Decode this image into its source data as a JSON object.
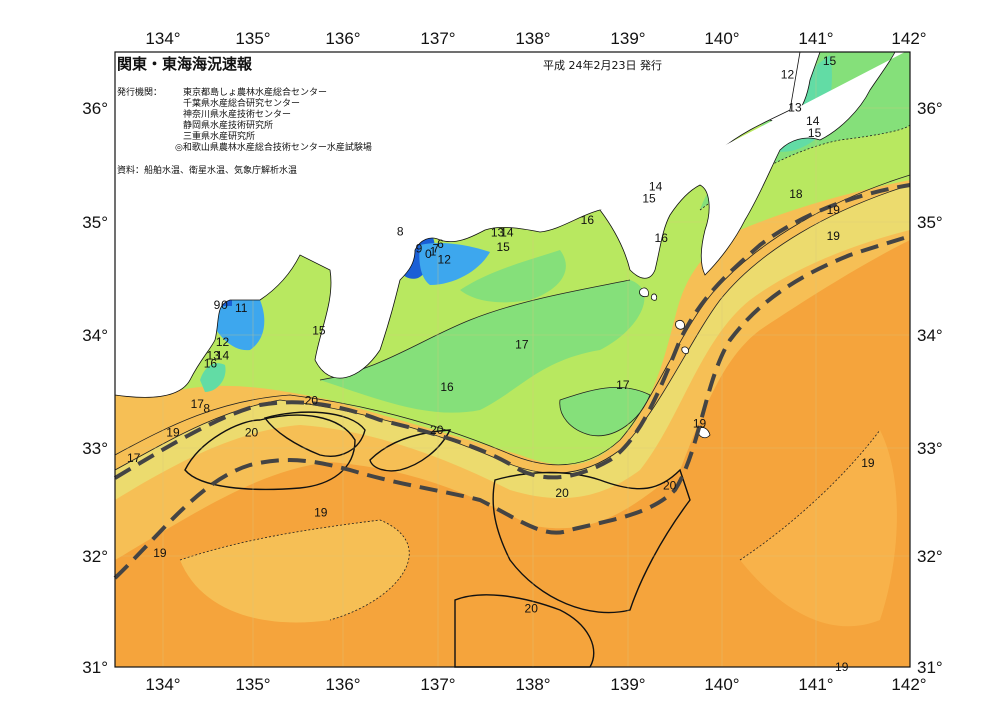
{
  "title": "関東・東海海況速報",
  "date": "平成 24年2月23日 発行",
  "issuer_label": "発行機関：",
  "issuers": [
    "東京都島しょ農林水産総合センター",
    "千葉県水産総合研究センター",
    "神奈川県水産技術センター",
    "静岡県水産技術研究所",
    "三重県水産研究所",
    "◎和歌山県農林水産総合技術センター水産試験場"
  ],
  "source": "資料：船舶水温、衛星水温、気象庁解析水温",
  "lon_labels": [
    "134°",
    "135°",
    "136°",
    "137°",
    "138°",
    "139°",
    "140°",
    "141°",
    "142°"
  ],
  "lat_labels": [
    "36°",
    "35°",
    "34°",
    "33°",
    "32°",
    "31°"
  ],
  "isotherm_labels": [
    {
      "text": "15",
      "lon": 141.14,
      "lat": 36.37
    },
    {
      "text": "12",
      "lon": 140.69,
      "lat": 36.25
    },
    {
      "text": "13",
      "lon": 140.77,
      "lat": 35.96
    },
    {
      "text": "14",
      "lon": 140.96,
      "lat": 35.84
    },
    {
      "text": "15",
      "lon": 140.98,
      "lat": 35.73
    },
    {
      "text": "18",
      "lon": 140.78,
      "lat": 35.19
    },
    {
      "text": "19",
      "lon": 141.18,
      "lat": 35.05
    },
    {
      "text": "19",
      "lon": 141.18,
      "lat": 34.82
    },
    {
      "text": "14",
      "lon": 139.28,
      "lat": 35.26
    },
    {
      "text": "15",
      "lon": 139.21,
      "lat": 35.15
    },
    {
      "text": "16",
      "lon": 138.55,
      "lat": 34.96
    },
    {
      "text": "16",
      "lon": 139.34,
      "lat": 34.8
    },
    {
      "text": "13",
      "lon": 137.59,
      "lat": 34.85
    },
    {
      "text": "14",
      "lon": 137.69,
      "lat": 34.85
    },
    {
      "text": "15",
      "lon": 137.65,
      "lat": 34.72
    },
    {
      "text": "8",
      "lon": 136.55,
      "lat": 34.86
    },
    {
      "text": "9",
      "lon": 136.75,
      "lat": 34.71
    },
    {
      "text": "6",
      "lon": 136.98,
      "lat": 34.75
    },
    {
      "text": "7",
      "lon": 136.93,
      "lat": 34.71
    },
    {
      "text": "0",
      "lon": 136.85,
      "lat": 34.66
    },
    {
      "text": "1",
      "lon": 136.9,
      "lat": 34.68
    },
    {
      "text": "12",
      "lon": 137.02,
      "lat": 34.61
    },
    {
      "text": "9",
      "lon": 134.59,
      "lat": 34.21
    },
    {
      "text": "0",
      "lon": 134.67,
      "lat": 34.21
    },
    {
      "text": "11",
      "lon": 134.85,
      "lat": 34.18
    },
    {
      "text": "12",
      "lon": 134.65,
      "lat": 33.88
    },
    {
      "text": "13",
      "lon": 134.55,
      "lat": 33.76
    },
    {
      "text": "14",
      "lon": 134.65,
      "lat": 33.76
    },
    {
      "text": "16",
      "lon": 134.52,
      "lat": 33.69
    },
    {
      "text": "15",
      "lon": 135.68,
      "lat": 33.98
    },
    {
      "text": "17",
      "lon": 137.85,
      "lat": 33.86
    },
    {
      "text": "16",
      "lon": 137.05,
      "lat": 33.48
    },
    {
      "text": "17",
      "lon": 138.93,
      "lat": 33.5
    },
    {
      "text": "17",
      "lon": 134.38,
      "lat": 33.33
    },
    {
      "text": "8",
      "lon": 134.48,
      "lat": 33.29
    },
    {
      "text": "20",
      "lon": 135.6,
      "lat": 33.36
    },
    {
      "text": "20",
      "lon": 134.96,
      "lat": 33.08
    },
    {
      "text": "19",
      "lon": 134.12,
      "lat": 33.08
    },
    {
      "text": "20",
      "lon": 136.94,
      "lat": 33.1
    },
    {
      "text": "17",
      "lon": 133.7,
      "lat": 32.85
    },
    {
      "text": "19",
      "lon": 139.75,
      "lat": 33.16
    },
    {
      "text": "19",
      "lon": 141.55,
      "lat": 32.81
    },
    {
      "text": "20",
      "lon": 138.28,
      "lat": 32.54
    },
    {
      "text": "20",
      "lon": 139.43,
      "lat": 32.61
    },
    {
      "text": "19",
      "lon": 135.7,
      "lat": 32.37
    },
    {
      "text": "19",
      "lon": 133.98,
      "lat": 32.01
    },
    {
      "text": "20",
      "lon": 137.95,
      "lat": 31.52
    },
    {
      "text": "19",
      "lon": 141.27,
      "lat": 31.0
    }
  ],
  "icon_names": [
    "land-mask",
    "kuroshio-axis-line",
    "isotherm-contour",
    "grid-line"
  ],
  "colors": {
    "land": "#ffffff",
    "cold_deep": "#1a5fd6",
    "cold": "#3da7ee",
    "cool": "#62dca5",
    "mid_green": "#85e07a",
    "lime": "#b8e860",
    "yellow": "#ecdb6e",
    "light_orange": "#f6bf55",
    "orange": "#f5a43c",
    "kuroshio_line": "#444444"
  }
}
